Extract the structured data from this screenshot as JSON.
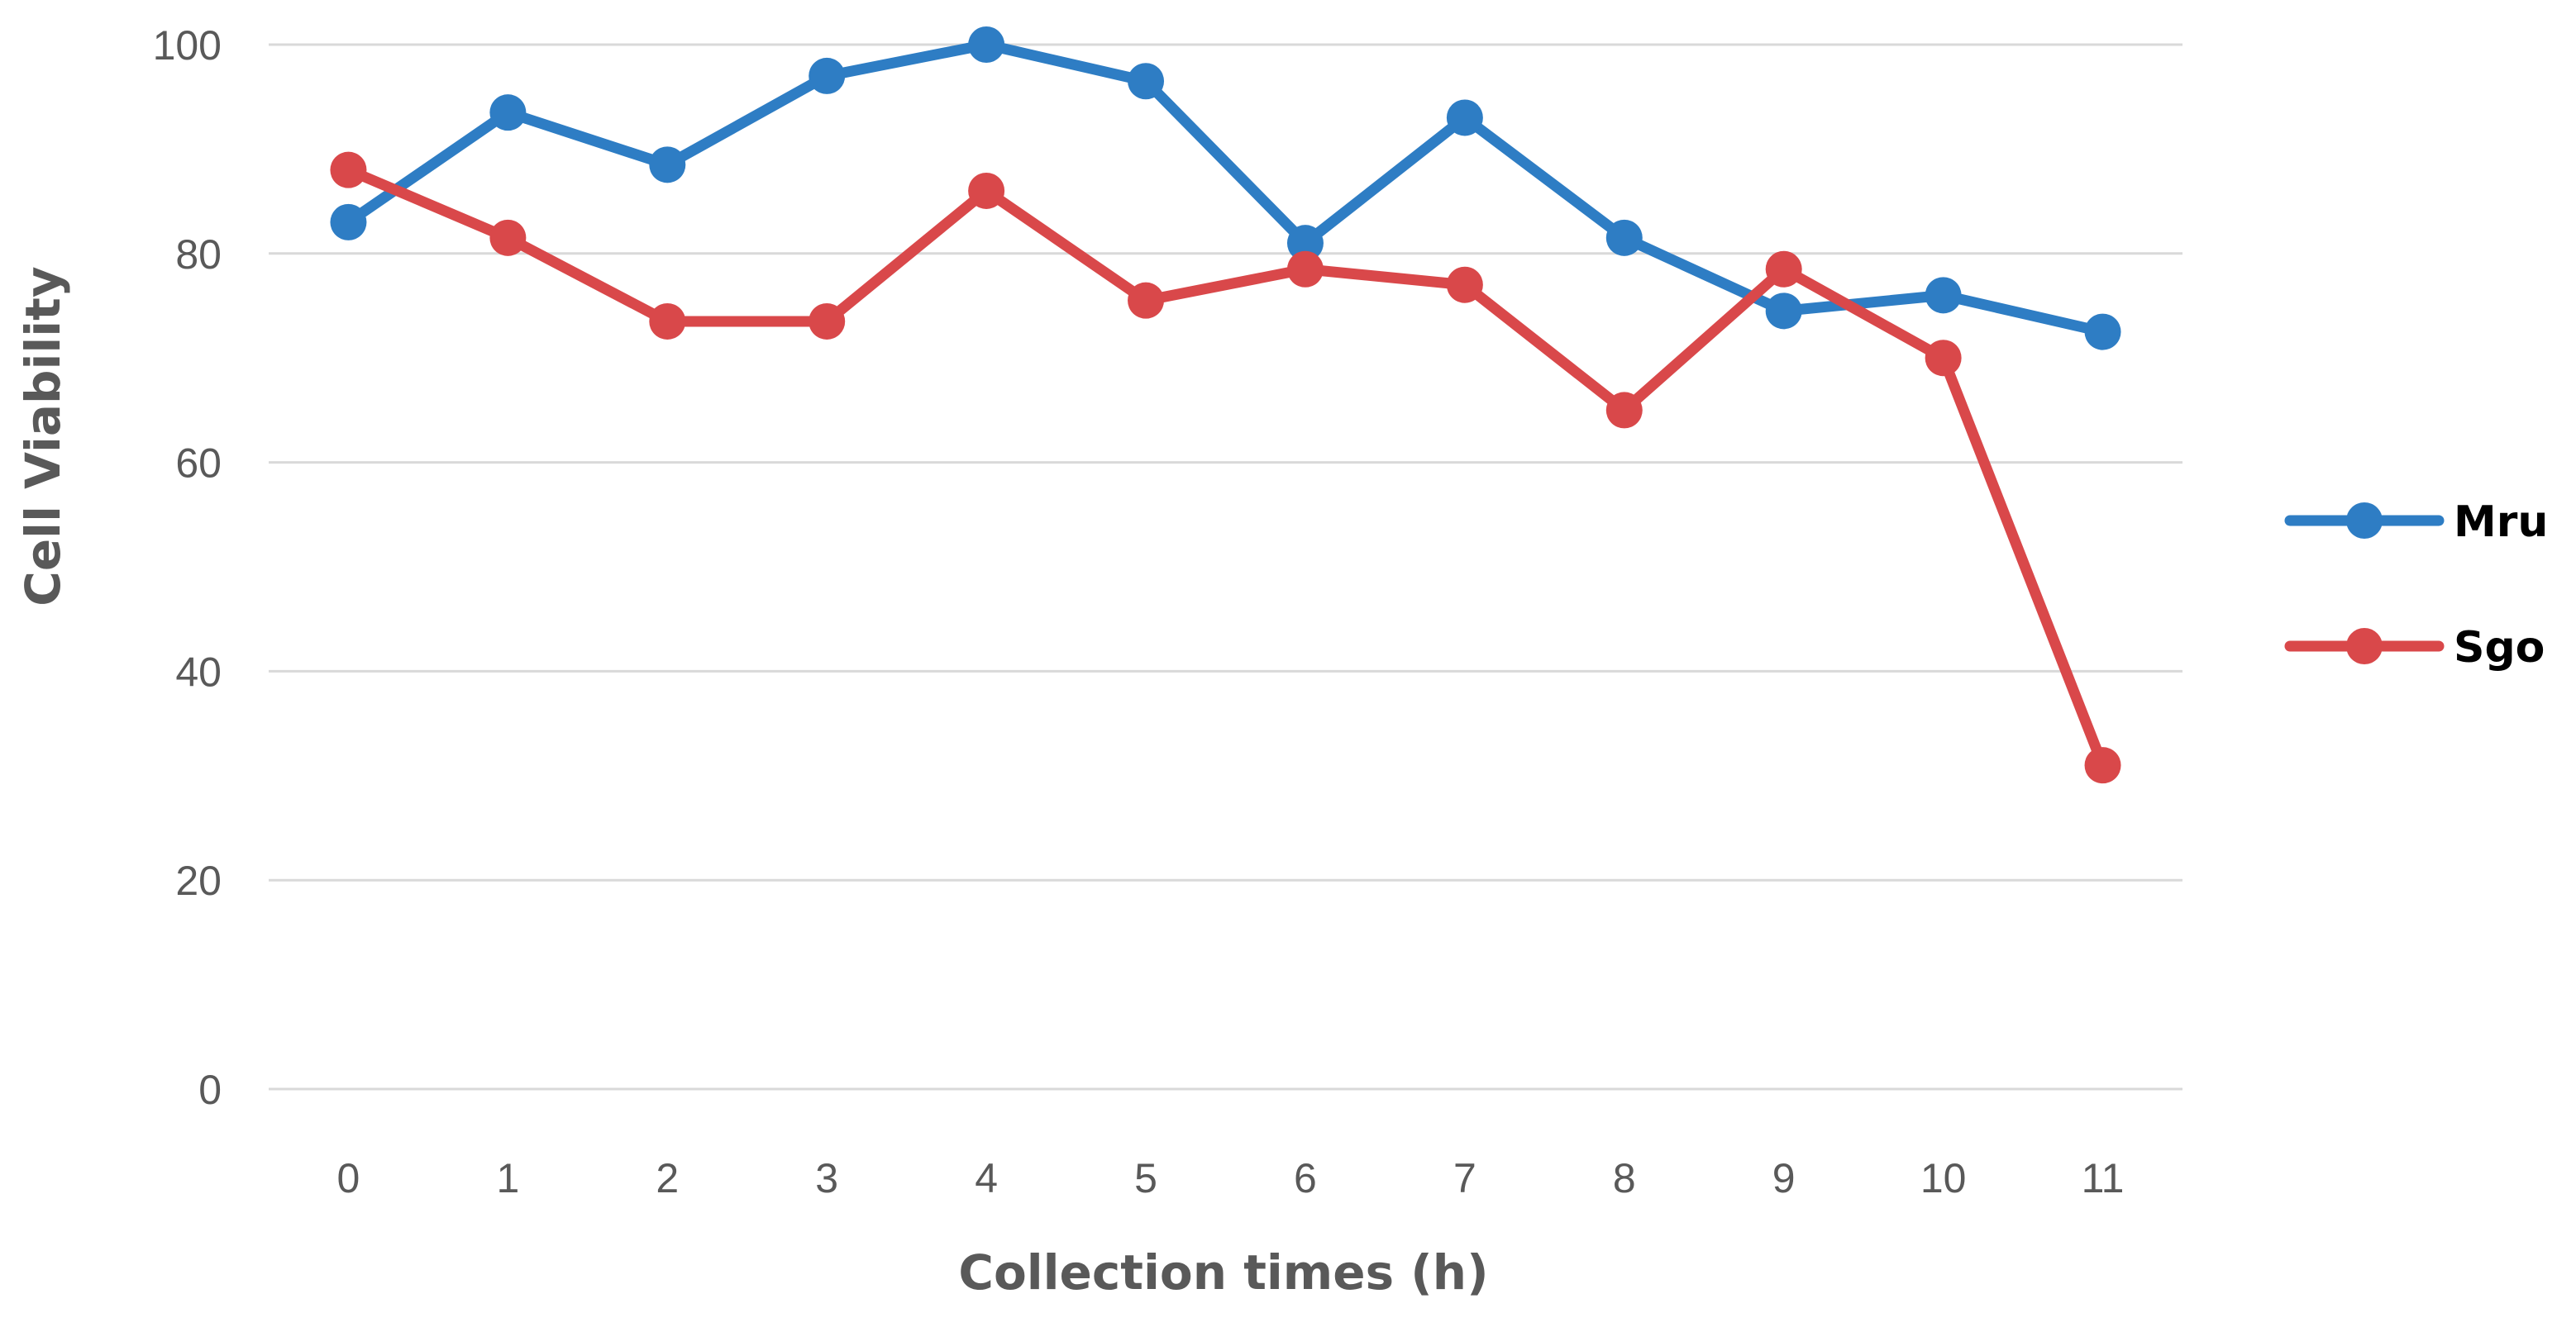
{
  "chart_data": {
    "type": "line",
    "title": "",
    "xlabel": "Collection times (h)",
    "ylabel": "Cell Viability",
    "x": [
      0,
      1,
      2,
      3,
      4,
      5,
      6,
      7,
      8,
      9,
      10,
      11
    ],
    "ylim": [
      0,
      100
    ],
    "yticks": [
      0,
      20,
      40,
      60,
      80,
      100
    ],
    "grid": true,
    "legend": "right",
    "series": [
      {
        "name": "Mru",
        "color": "#2e7dc4",
        "values": [
          83,
          93.5,
          88.5,
          97,
          100,
          96.5,
          81,
          93,
          81.5,
          74.5,
          76,
          72.5
        ]
      },
      {
        "name": "Sgo",
        "color": "#d9484a",
        "values": [
          88,
          81.5,
          73.5,
          73.5,
          86,
          75.5,
          78.5,
          77,
          65,
          78.5,
          70,
          31
        ]
      }
    ]
  }
}
